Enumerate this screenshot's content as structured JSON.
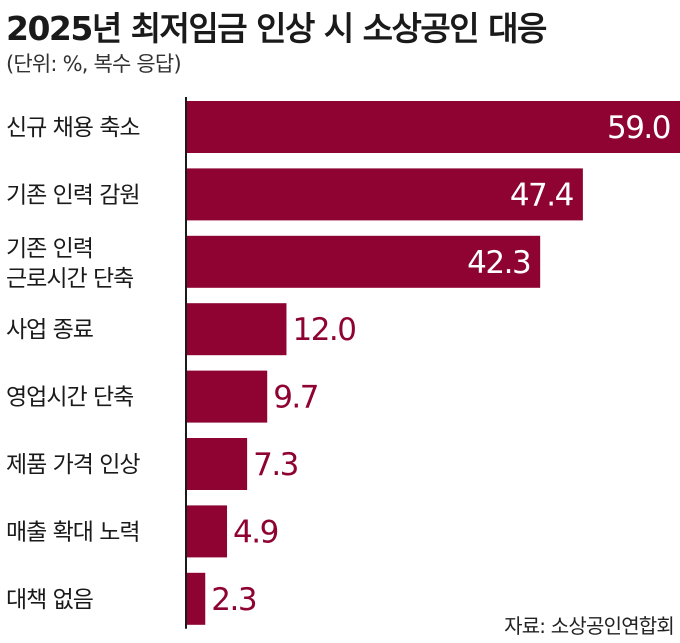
{
  "title": "2025년 최저임금 인상 시 소상공인 대응",
  "subtitle": "(단위: %, 복수 응답)",
  "source": "자료: 소상공인연합회",
  "colors": {
    "bar": "#8e0331",
    "value_inside": "#ffffff",
    "value_outside": "#8e0331",
    "axis": "#1a1a1a"
  },
  "chart_data": {
    "type": "bar",
    "orientation": "horizontal",
    "categories": [
      "신규 채용 축소",
      "기존 인력 감원",
      "기존 인력\n근로시간 단축",
      "사업 종료",
      "영업시간 단축",
      "제품 가격 인상",
      "매출 확대 노력",
      "대책 없음"
    ],
    "values": [
      59.0,
      47.4,
      42.3,
      12.0,
      9.7,
      7.3,
      4.9,
      2.3
    ],
    "value_labels": [
      "59.0",
      "47.4",
      "42.3",
      "12.0",
      "9.7",
      "7.3",
      "4.9",
      "2.3"
    ],
    "xlim": [
      0,
      59.0
    ],
    "grid": false,
    "legend": "none"
  }
}
